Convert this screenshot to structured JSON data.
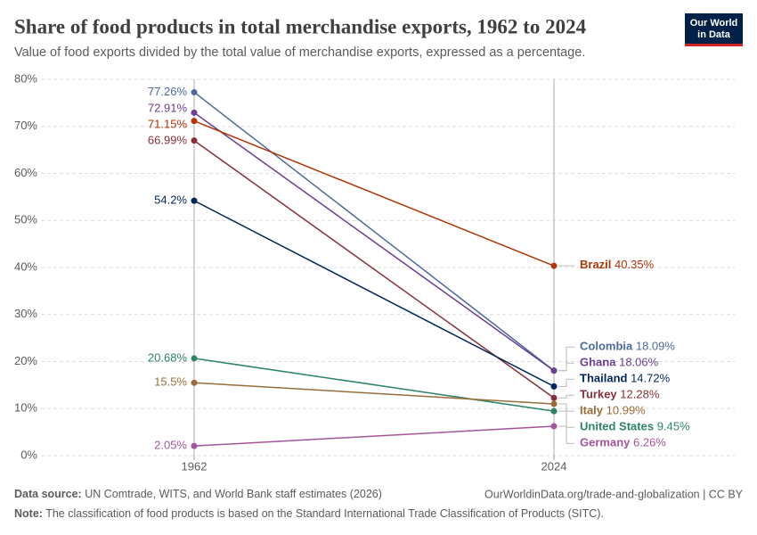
{
  "title": "Share of food products in total merchandise exports, 1962 to 2024",
  "subtitle": "Value of food exports divided by the total value of merchandise exports, expressed as a percentage.",
  "logo": [
    "Our World",
    "in Data"
  ],
  "footer": {
    "source_label": "Data source:",
    "source": "UN Comtrade, WITS, and World Bank staff estimates (2026)",
    "url": "OurWorldinData.org/trade-and-globalization | CC BY",
    "note_label": "Note:",
    "note": "The classification of food products is based on the Standard International Trade Classification of Products (SITC)."
  },
  "chart_data": {
    "type": "slope",
    "categories": [
      "1962",
      "2024"
    ],
    "ylim": [
      0,
      80
    ],
    "yticks": [
      {
        "value": 0,
        "label": "0%"
      },
      {
        "value": 10,
        "label": "10%"
      },
      {
        "value": 20,
        "label": "20%"
      },
      {
        "value": 30,
        "label": "30%"
      },
      {
        "value": 40,
        "label": "40%"
      },
      {
        "value": 50,
        "label": "50%"
      },
      {
        "value": 60,
        "label": "60%"
      },
      {
        "value": 70,
        "label": "70%"
      },
      {
        "value": 80,
        "label": "80%"
      }
    ],
    "grid": true,
    "series": [
      {
        "name": "Colombia",
        "color": "#4c6a9c",
        "values": [
          77.26,
          18.09
        ],
        "value_labels": [
          "77.26%",
          "18.09%"
        ]
      },
      {
        "name": "Ghana",
        "color": "#6d3e91",
        "values": [
          72.91,
          18.06
        ],
        "value_labels": [
          "72.91%",
          "18.06%"
        ]
      },
      {
        "name": "Brazil",
        "color": "#b13507",
        "values": [
          71.15,
          40.35
        ],
        "value_labels": [
          "71.15%",
          "40.35%"
        ]
      },
      {
        "name": "Turkey",
        "color": "#883039",
        "values": [
          66.99,
          12.28
        ],
        "value_labels": [
          "66.99%",
          "12.28%"
        ]
      },
      {
        "name": "Thailand",
        "color": "#00295b",
        "values": [
          54.2,
          14.72
        ],
        "value_labels": [
          "54.2%",
          "14.72%"
        ]
      },
      {
        "name": "United States",
        "color": "#2c8465",
        "values": [
          20.68,
          9.45
        ],
        "value_labels": [
          "20.68%",
          "9.45%"
        ]
      },
      {
        "name": "Italy",
        "color": "#996d39",
        "values": [
          15.5,
          10.99
        ],
        "value_labels": [
          "15.5%",
          "10.99%"
        ]
      },
      {
        "name": "Germany",
        "color": "#a2559c",
        "values": [
          2.05,
          6.26
        ],
        "value_labels": [
          "2.05%",
          "6.26%"
        ]
      }
    ]
  }
}
